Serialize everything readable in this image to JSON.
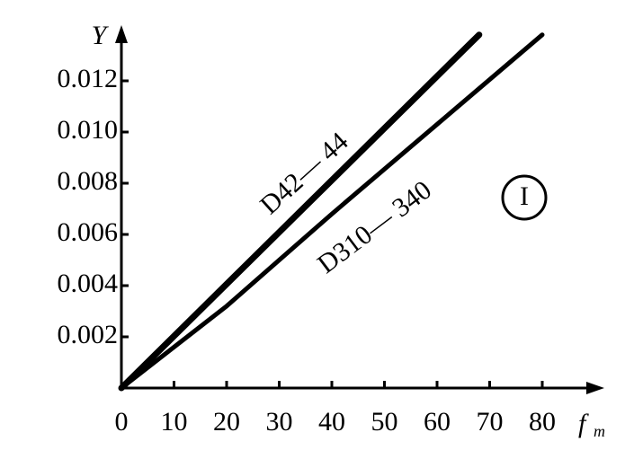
{
  "chart_data": {
    "type": "line",
    "xlabel": {
      "main": "f",
      "sub": "m"
    },
    "ylabel": "Y",
    "xlim": [
      0,
      90
    ],
    "ylim": [
      0,
      0.014
    ],
    "xticks": [
      0,
      10,
      20,
      30,
      40,
      50,
      60,
      70,
      80
    ],
    "yticks": [
      0.002,
      0.004,
      0.006,
      {
        "value": 0.01,
        "label": "0.010"
      },
      0.008,
      0.012
    ],
    "series": [
      {
        "name": "D42— 44",
        "color": "#000000",
        "x": [
          0,
          68
        ],
        "values": [
          0,
          0.0138
        ]
      },
      {
        "name": "D310— 340",
        "color": "#000000",
        "x": [
          0,
          20,
          40,
          60,
          80
        ],
        "values": [
          0,
          0.0032,
          0.0068,
          0.0103,
          0.0138
        ]
      }
    ],
    "annotation": "I"
  }
}
